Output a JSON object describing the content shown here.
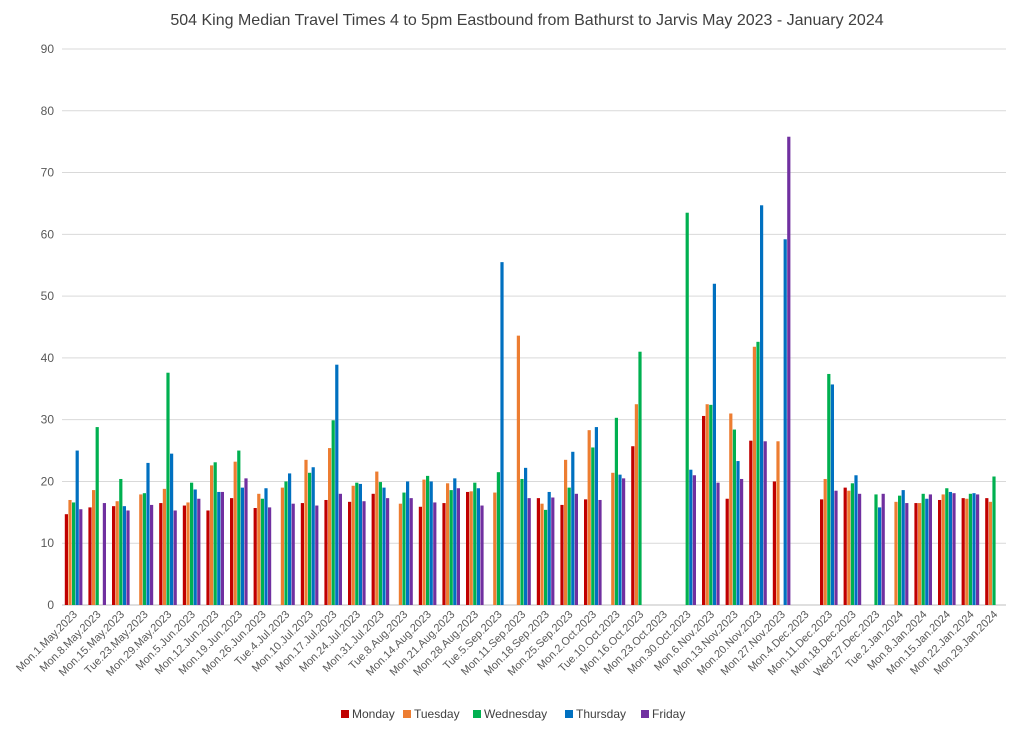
{
  "chart_data": {
    "type": "bar",
    "title": "504 King Median Travel Times 4 to 5pm Eastbound from Bathurst to Jarvis May 2023 - January 2024",
    "xlabel": "",
    "ylabel": "",
    "ylim": [
      0,
      90
    ],
    "yticks": [
      0,
      10,
      20,
      30,
      40,
      50,
      60,
      70,
      80,
      90
    ],
    "grid": true,
    "legend_position": "bottom",
    "categories": [
      "Mon.1.May.2023",
      "Mon.8.May.2023",
      "Mon.15.May.2023",
      "Tue.23.May.2023",
      "Mon.29.May.2023",
      "Mon.5.Jun.2023",
      "Mon.12.Jun.2023",
      "Mon.19.Jun.2023",
      "Mon.26.Jun.2023",
      "Tue.4.Jul.2023",
      "Mon.10.Jul.2023",
      "Mon.17.Jul.2023",
      "Mon.24.Jul.2023",
      "Mon.31.Jul.2023",
      "Tue.8.Aug.2023",
      "Mon.14.Aug.2023",
      "Mon.21.Aug.2023",
      "Mon.28.Aug.2023",
      "Tue.5.Sep.2023",
      "Mon.11.Sep.2023",
      "Mon.18.Sep.2023",
      "Mon.25.Sep.2023",
      "Mon.2.Oct.2023",
      "Tue.10.Oct.2023",
      "Mon.16.Oct.2023",
      "Mon.23.Oct.2023",
      "Mon.30.Oct.2023",
      "Mon.6.Nov.2023",
      "Mon.13.Nov.2023",
      "Mon.20.Nov.2023",
      "Mon.27.Nov.2023",
      "Mon.4.Dec.2023",
      "Mon.11.Dec.2023",
      "Mon.18.Dec.2023",
      "Wed.27.Dec.2023",
      "Tue.2.Jan.2024",
      "Mon.8.Jan.2024",
      "Mon.15.Jan.2024",
      "Mon.22.Jan.2024",
      "Mon.29.Jan.2024"
    ],
    "series": [
      {
        "name": "Monday",
        "color": "#c00000",
        "values": [
          14.7,
          15.8,
          16.0,
          null,
          16.5,
          16.1,
          15.3,
          17.3,
          15.7,
          null,
          16.5,
          17.0,
          16.7,
          18.0,
          null,
          15.9,
          16.5,
          18.3,
          null,
          null,
          17.3,
          16.2,
          17.1,
          null,
          25.7,
          null,
          null,
          30.6,
          17.2,
          26.6,
          20.0,
          null,
          17.1,
          19.0,
          null,
          null,
          16.5,
          17.0,
          17.3,
          17.3
        ]
      },
      {
        "name": "Tuesday",
        "color": "#ed7d31",
        "values": [
          17.0,
          18.6,
          16.8,
          17.9,
          18.8,
          16.6,
          22.6,
          23.2,
          18.0,
          19.0,
          23.5,
          25.4,
          19.3,
          21.6,
          16.4,
          20.3,
          19.7,
          18.4,
          18.2,
          43.6,
          16.4,
          23.5,
          28.3,
          21.4,
          32.5,
          null,
          null,
          32.5,
          31.0,
          41.8,
          26.5,
          null,
          20.4,
          18.5,
          null,
          16.7,
          16.5,
          17.9,
          17.2,
          16.7
        ]
      },
      {
        "name": "Wednesday",
        "color": "#00b050",
        "values": [
          16.6,
          28.8,
          20.4,
          18.1,
          37.6,
          19.8,
          23.1,
          25.0,
          17.2,
          20.0,
          21.4,
          29.9,
          19.8,
          19.9,
          18.2,
          20.9,
          18.6,
          19.8,
          21.5,
          20.4,
          15.4,
          19.0,
          25.5,
          30.3,
          41.0,
          null,
          63.5,
          32.4,
          28.4,
          42.6,
          null,
          null,
          37.4,
          19.7,
          17.9,
          17.7,
          18.0,
          18.9,
          18.0,
          20.8
        ]
      },
      {
        "name": "Thursday",
        "color": "#0070c0",
        "values": [
          25.0,
          null,
          16.0,
          23.0,
          24.5,
          18.7,
          18.3,
          19.0,
          18.9,
          21.3,
          22.3,
          38.9,
          19.6,
          19.0,
          20.0,
          20.0,
          20.5,
          18.9,
          55.5,
          22.2,
          18.3,
          24.8,
          28.8,
          21.1,
          null,
          null,
          21.9,
          52.0,
          23.3,
          64.7,
          59.2,
          null,
          35.7,
          21.0,
          15.8,
          18.6,
          17.2,
          18.3,
          18.1,
          null
        ]
      },
      {
        "name": "Friday",
        "color": "#7030a0",
        "values": [
          15.5,
          16.5,
          15.3,
          16.2,
          15.3,
          17.2,
          18.3,
          20.5,
          15.8,
          16.4,
          16.1,
          18.0,
          16.8,
          17.3,
          17.3,
          16.6,
          18.9,
          16.1,
          null,
          17.3,
          17.4,
          18.0,
          17.0,
          20.5,
          null,
          null,
          21.0,
          19.8,
          20.4,
          26.5,
          75.8,
          null,
          18.5,
          18.0,
          18.0,
          16.5,
          17.9,
          18.1,
          17.9,
          null
        ]
      }
    ]
  }
}
